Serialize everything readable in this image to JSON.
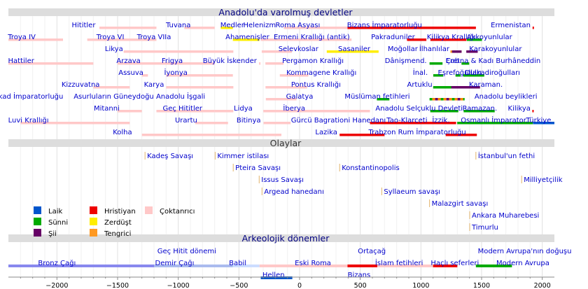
{
  "chart_data": {
    "type": "timeline",
    "x_range": [
      -2400,
      2100
    ],
    "x_ticks": [
      -2000,
      -1500,
      -1000,
      -500,
      0,
      500,
      1000,
      1500,
      2000
    ],
    "colors": {
      "pagan": "#ffc8c8",
      "christian": "#ee0000",
      "sunni": "#00aa00",
      "shia": "#660066",
      "secular": "#0055cc",
      "zoroastrian": "#ffee00",
      "tengri": "#ff9922",
      "stripe": "#ff8800",
      "bronze": "#8888ee",
      "iron": "#aabbee",
      "babylon": "#ccddff",
      "helen": "#0055cc",
      "modern": "#00aa00",
      "event": "#e2b46a"
    },
    "sections": [
      {
        "title": "Anadolu'da varolmuş devletler",
        "row": 0
      },
      {
        "title": "Olaylar",
        "row": 11
      },
      {
        "title": "Arkeolojik dönemler",
        "row": 19
      }
    ],
    "states": [
      {
        "label": "Hititler",
        "row": 1,
        "label_x": -1780,
        "bars": [
          {
            "s": -1650,
            "e": -1180,
            "c": "pagan"
          }
        ]
      },
      {
        "label": "Tuvana",
        "row": 1,
        "label_x": -1000,
        "bars": [
          {
            "s": -950,
            "e": -700,
            "c": "pagan"
          }
        ]
      },
      {
        "label": "Medler",
        "row": 1,
        "label_x": -555,
        "bars": [
          {
            "s": -650,
            "e": -550,
            "c": "zoroastrian"
          }
        ]
      },
      {
        "label": "Helenizm",
        "row": 1,
        "label_x": -330,
        "bars": []
      },
      {
        "label": "Roma Asyası",
        "row": 1,
        "label_x": -15,
        "bars": [
          {
            "s": -130,
            "e": 395,
            "c": "pagan"
          }
        ]
      },
      {
        "label": "Bizans İmparatorluğu",
        "row": 1,
        "label_x": 700,
        "bars": [
          {
            "s": 395,
            "e": 1453,
            "c": "christian"
          }
        ]
      },
      {
        "label": "Ermenistan",
        "row": 1,
        "label_x": 1740,
        "bars": [
          {
            "s": 1920,
            "e": 1921,
            "c": "christian"
          }
        ]
      },
      {
        "label": "Troya IV",
        "row": 2,
        "label_x": -2290,
        "bars": [
          {
            "s": -2400,
            "e": -1950,
            "c": "pagan"
          }
        ]
      },
      {
        "label": "Troya VI",
        "row": 2,
        "label_x": -1560,
        "bars": [
          {
            "s": -1750,
            "e": -1300,
            "c": "pagan"
          }
        ]
      },
      {
        "label": "Troya VIIa",
        "row": 2,
        "label_x": -1200,
        "bars": [
          {
            "s": -1300,
            "e": -1180,
            "c": "pagan"
          }
        ]
      },
      {
        "label": "Ahamenişler",
        "row": 2,
        "label_x": -430,
        "bars": [
          {
            "s": -550,
            "e": -330,
            "c": "zoroastrian"
          }
        ]
      },
      {
        "label": "Ermeni Krallığı (antik)",
        "row": 2,
        "label_x": 100,
        "bars": [
          {
            "s": -321,
            "e": 428,
            "c": "pagan"
          }
        ]
      },
      {
        "label": "Pakraduniler",
        "row": 2,
        "label_x": 770,
        "bars": [
          {
            "s": 885,
            "e": 1045,
            "c": "christian"
          }
        ]
      },
      {
        "label": "Kilikya Krallığı",
        "row": 2,
        "label_x": 1250,
        "bars": [
          {
            "s": 1078,
            "e": 1375,
            "c": "christian"
          }
        ]
      },
      {
        "label": "Akkoyunlular",
        "row": 2,
        "label_x": 1565,
        "bars": [
          {
            "s": 1378,
            "e": 1503,
            "c": "sunni"
          }
        ]
      },
      {
        "label": "Likya",
        "row": 3,
        "label_x": -1530,
        "bars": [
          {
            "s": -1450,
            "e": -546,
            "c": "pagan"
          }
        ]
      },
      {
        "label": "Selevkoslar",
        "row": 3,
        "label_x": -10,
        "bars": [
          {
            "s": -312,
            "e": -63,
            "c": "pagan"
          }
        ]
      },
      {
        "label": "Sasaniler",
        "row": 3,
        "label_x": 450,
        "bars": [
          {
            "s": 224,
            "e": 651,
            "c": "zoroastrian"
          }
        ]
      },
      {
        "label": "Moğollar",
        "row": 3,
        "label_x": 850,
        "bars": [
          {
            "s": 1243,
            "e": 1335,
            "c": "tengri"
          }
        ]
      },
      {
        "label": "İlhanlılar",
        "row": 3,
        "label_x": 1110,
        "bars": [
          {
            "s": 1256,
            "e": 1335,
            "c": "shia"
          }
        ]
      },
      {
        "label": "Karakoyunlular",
        "row": 3,
        "label_x": 1615,
        "bars": [
          {
            "s": 1374,
            "e": 1468,
            "c": "shia"
          }
        ]
      },
      {
        "label": "Hattiler",
        "row": 4,
        "label_x": -2295,
        "bars": [
          {
            "s": -2400,
            "e": -1700,
            "c": "pagan"
          }
        ]
      },
      {
        "label": "Arzava",
        "row": 4,
        "label_x": -1410,
        "bars": [
          {
            "s": -1500,
            "e": -1200,
            "c": "pagan"
          }
        ]
      },
      {
        "label": "Frigya",
        "row": 4,
        "label_x": -1050,
        "bars": [
          {
            "s": -1200,
            "e": -700,
            "c": "pagan"
          }
        ]
      },
      {
        "label": "Büyük İskender",
        "row": 4,
        "label_x": -575,
        "bars": [
          {
            "s": -334,
            "e": -323,
            "c": "pagan"
          }
        ]
      },
      {
        "label": "Pergamon Krallığı",
        "row": 4,
        "label_x": 110,
        "bars": [
          {
            "s": -282,
            "e": -133,
            "c": "pagan"
          }
        ]
      },
      {
        "label": "Dânişmend.",
        "row": 4,
        "label_x": 875,
        "bars": [
          {
            "s": 1071,
            "e": 1178,
            "c": "sunni"
          }
        ]
      },
      {
        "label": "Çob.",
        "row": 4,
        "label_x": 1270,
        "bars": [
          {
            "s": 1335,
            "e": 1357,
            "c": "sunni"
          }
        ]
      },
      {
        "label": "Eretna & Kadı Burhâneddin",
        "row": 4,
        "label_x": 1595,
        "bars": [
          {
            "s": 1335,
            "e": 1398,
            "c": "sunni"
          }
        ]
      },
      {
        "label": "Assuva",
        "row": 5,
        "label_x": -1390,
        "bars": [
          {
            "s": -1300,
            "e": -1250,
            "c": "pagan"
          }
        ]
      },
      {
        "label": "İyonya",
        "row": 5,
        "label_x": -1020,
        "bars": [
          {
            "s": -1100,
            "e": -550,
            "c": "pagan"
          }
        ]
      },
      {
        "label": "Kommagene Krallığı",
        "row": 5,
        "label_x": 180,
        "bars": [
          {
            "s": -163,
            "e": 72,
            "c": "pagan"
          }
        ]
      },
      {
        "label": "İnal.",
        "row": 5,
        "label_x": 995,
        "bars": [
          {
            "s": 1102,
            "e": 1183,
            "c": "sunni"
          }
        ]
      },
      {
        "label": "Eşrefoğulları",
        "row": 5,
        "label_x": 1320,
        "bars": [
          {
            "s": 1285,
            "e": 1326,
            "c": "sunni"
          }
        ]
      },
      {
        "label": "Dulkadiroğulları",
        "row": 5,
        "label_x": 1590,
        "bars": [
          {
            "s": 1348,
            "e": 1522,
            "c": "sunni"
          }
        ]
      },
      {
        "label": "Kizzuvatna",
        "row": 6,
        "label_x": -1805,
        "bars": [
          {
            "s": -1700,
            "e": -1400,
            "c": "pagan"
          }
        ]
      },
      {
        "label": "Karya",
        "row": 6,
        "label_x": -1200,
        "bars": [
          {
            "s": -1100,
            "e": -546,
            "c": "pagan"
          }
        ]
      },
      {
        "label": "Pontus Krallığı",
        "row": 6,
        "label_x": 135,
        "bars": [
          {
            "s": -281,
            "e": 62,
            "c": "pagan"
          }
        ]
      },
      {
        "label": "Artuklu",
        "row": 6,
        "label_x": 990,
        "bars": [
          {
            "s": 1101,
            "e": 1409,
            "c": "sunni"
          }
        ]
      },
      {
        "label": "Karaman.",
        "row": 6,
        "label_x": 1535,
        "bars": [
          {
            "s": 1250,
            "e": 1487,
            "c": "shia"
          }
        ]
      },
      {
        "label": "Akad İmparatorluğu",
        "row": 7,
        "label_x": -2235,
        "bars": []
      },
      {
        "label": "Asurluların Güneydoğu Anadolu İşgali",
        "row": 7,
        "label_x": -1320,
        "bars": []
      },
      {
        "label": "Galatya",
        "row": 7,
        "label_x": 0,
        "bars": [
          {
            "s": -278,
            "e": -25,
            "c": "pagan"
          }
        ]
      },
      {
        "label": "Müslüman fetihleri",
        "row": 7,
        "label_x": 640,
        "bars": [
          {
            "s": 637,
            "e": 740,
            "c": "sunni"
          }
        ]
      },
      {
        "label": "Anadolu beylikleri",
        "row": 7,
        "label_x": 1700,
        "bars": [
          {
            "s": 1071,
            "e": 1360,
            "c": "stripe"
          }
        ]
      },
      {
        "label": "Mitanni",
        "row": 8,
        "label_x": -1590,
        "bars": [
          {
            "s": -1500,
            "e": -1300,
            "c": "pagan"
          }
        ]
      },
      {
        "label": "Geç Hititler",
        "row": 8,
        "label_x": -965,
        "bars": [
          {
            "s": -1180,
            "e": -700,
            "c": "pagan"
          }
        ]
      },
      {
        "label": "Lidya",
        "row": 8,
        "label_x": -465,
        "bars": [
          {
            "s": -700,
            "e": -546,
            "c": "pagan"
          }
        ]
      },
      {
        "label": "İberya",
        "row": 8,
        "label_x": -45,
        "bars": [
          {
            "s": -299,
            "e": 580,
            "c": "pagan"
          }
        ]
      },
      {
        "label": "Anadolu Selçuklu Devleti",
        "row": 8,
        "label_x": 985,
        "bars": [
          {
            "s": 1077,
            "e": 1308,
            "c": "sunni"
          }
        ]
      },
      {
        "label": "Ramazan.",
        "row": 8,
        "label_x": 1485,
        "bars": [
          {
            "s": 1352,
            "e": 1608,
            "c": "sunni"
          }
        ]
      },
      {
        "label": "Kilikya",
        "row": 8,
        "label_x": 1810,
        "bars": [
          {
            "s": 1918,
            "e": 1921,
            "c": "christian"
          }
        ]
      },
      {
        "label": "Luvi Krallığı",
        "row": 9,
        "label_x": -2235,
        "bars": [
          {
            "s": -2300,
            "e": -1400,
            "c": "pagan"
          }
        ]
      },
      {
        "label": "Urartu",
        "row": 9,
        "label_x": -935,
        "bars": [
          {
            "s": -860,
            "e": -590,
            "c": "pagan"
          }
        ]
      },
      {
        "label": "Bitinya",
        "row": 9,
        "label_x": -420,
        "bars": [
          {
            "s": -297,
            "e": -74,
            "c": "pagan"
          }
        ]
      },
      {
        "label": "Gürcü Bagrationi Hanedanı",
        "row": 9,
        "label_x": 320,
        "bars": [
          {
            "s": 580,
            "e": 1230,
            "c": "christian"
          }
        ]
      },
      {
        "label": "Tao-Klarceti",
        "row": 9,
        "label_x": 885,
        "bars": []
      },
      {
        "label": "İzzik.",
        "row": 9,
        "label_x": 1165,
        "bars": [
          {
            "s": 1140,
            "e": 1290,
            "c": "christian"
          }
        ]
      },
      {
        "label": "Osmanlı İmparator.",
        "row": 9,
        "label_x": 1605,
        "bars": [
          {
            "s": 1299,
            "e": 1922,
            "c": "sunni"
          }
        ]
      },
      {
        "label": "Türkiye",
        "row": 9,
        "label_x": 1970,
        "bars": [
          {
            "s": 1923,
            "e": 2100,
            "c": "secular"
          }
        ]
      },
      {
        "label": "Kolha",
        "row": 10,
        "label_x": -1460,
        "bars": [
          {
            "s": -1300,
            "e": -150,
            "c": "pagan"
          }
        ]
      },
      {
        "label": "Lazika",
        "row": 10,
        "label_x": 220,
        "bars": [
          {
            "s": 330,
            "e": 700,
            "c": "christian"
          }
        ]
      },
      {
        "label": "Trabzon Rum İmparatorluğu",
        "row": 10,
        "label_x": 970,
        "bars": [
          {
            "s": 1204,
            "e": 1461,
            "c": "christian"
          }
        ]
      }
    ],
    "events": [
      {
        "label": "Kadeş Savaşı",
        "year": -1274,
        "row": 12
      },
      {
        "label": "Kimmer istilası",
        "year": -696,
        "row": 12
      },
      {
        "label": "İstanbul'un fethi",
        "year": 1453,
        "row": 12
      },
      {
        "label": "Pteira Savaşı",
        "year": -547,
        "row": 13
      },
      {
        "label": "Konstantinopolis",
        "year": 330,
        "row": 13
      },
      {
        "label": "Issus Savaşı",
        "year": -333,
        "row": 14
      },
      {
        "label": "Milliyetçilik",
        "year": 1830,
        "row": 14
      },
      {
        "label": "Argead hanedanı",
        "year": -310,
        "row": 15
      },
      {
        "label": "Syllaeum savaşı",
        "year": 677,
        "row": 15
      },
      {
        "label": "Malazgirt savaşı",
        "year": 1071,
        "row": 16
      },
      {
        "label": "Ankara Muharebesi",
        "year": 1402,
        "row": 17
      },
      {
        "label": "Timurlu",
        "year": 1402,
        "row": 18
      }
    ],
    "legend": [
      {
        "label": "Laik",
        "color": "secular"
      },
      {
        "label": "Hristiyan",
        "color": "christian"
      },
      {
        "label": "Çoktanrıcı",
        "color": "pagan"
      },
      {
        "label": "Sünni",
        "color": "sunni"
      },
      {
        "label": "Zerdüşt",
        "color": "zoroastrian"
      },
      {
        "label": "Şii",
        "color": "shia"
      },
      {
        "label": "Tengrici",
        "color": "tengri"
      }
    ],
    "periods": [
      {
        "label": "Geç Hitit dönemi",
        "label_x": -930,
        "row": 20,
        "bars": []
      },
      {
        "label": "Ortaçağ",
        "label_x": 595,
        "row": 20,
        "bars": []
      },
      {
        "label": "Modern Avrupa'nın doğuşu",
        "label_x": 1855,
        "row": 20,
        "bars": []
      },
      {
        "label": "Bronz Çağı",
        "label_x": -2000,
        "row": 21,
        "bars": [
          {
            "s": -2400,
            "e": -1200,
            "c": "bronze"
          }
        ]
      },
      {
        "label": "Demir Çağı",
        "label_x": -1030,
        "row": 21,
        "bars": [
          {
            "s": -1200,
            "e": -550,
            "c": "iron"
          }
        ]
      },
      {
        "label": "Babil",
        "label_x": -510,
        "row": 21,
        "bars": [
          {
            "s": -550,
            "e": -330,
            "c": "babylon"
          }
        ]
      },
      {
        "label": "Eski Roma",
        "label_x": 110,
        "row": 21,
        "bars": [
          {
            "s": -330,
            "e": 395,
            "c": "pagan"
          }
        ]
      },
      {
        "label": "İslam fetihleri",
        "label_x": 820,
        "row": 21,
        "bars": [
          {
            "s": 395,
            "e": 640,
            "c": "christian"
          },
          {
            "s": 640,
            "e": 1100,
            "c": "pagan"
          }
        ]
      },
      {
        "label": "Haçlı seferleri",
        "label_x": 1280,
        "row": 21,
        "bars": [
          {
            "s": 1100,
            "e": 1300,
            "c": "christian"
          }
        ]
      },
      {
        "label": "Modern Avrupa",
        "label_x": 1840,
        "row": 21,
        "bars": [
          {
            "s": 1453,
            "e": 1750,
            "c": "modern"
          }
        ]
      },
      {
        "label": "Hellen",
        "label_x": -215,
        "row": 22,
        "bars": [
          {
            "s": -320,
            "e": -60,
            "c": "helen"
          }
        ]
      },
      {
        "label": "Bizans",
        "label_x": 490,
        "row": 22,
        "bars": []
      }
    ]
  }
}
